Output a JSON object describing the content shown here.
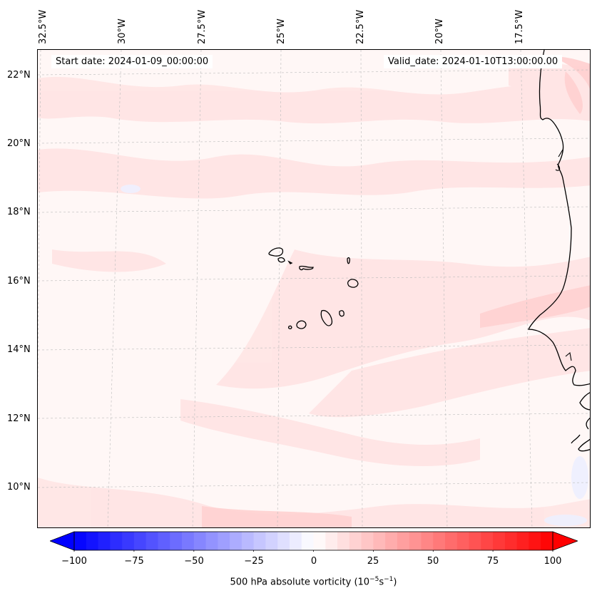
{
  "map": {
    "field": "500 hPa absolute vorticity",
    "units_prefix": "(10",
    "units_exp1": "−5",
    "units_mid": "s",
    "units_exp2": "−1",
    "units_suffix": ")",
    "start_date": "Start date: 2024-01-09_00:00:00",
    "valid_date": "Valid_date: 2024-01-10T13:00:00.00",
    "longitude_labels": [
      "32.5°W",
      "30°W",
      "27.5°W",
      "25°W",
      "22.5°W",
      "20°W",
      "17.5°W"
    ],
    "latitude_labels": [
      "22°N",
      "20°N",
      "18°N",
      "16°N",
      "14°N",
      "12°N",
      "10°N"
    ],
    "features": [
      "Cabo Verde islands",
      "West African coastline"
    ]
  },
  "colorbar": {
    "ticks": [
      "−100",
      "−75",
      "−50",
      "−25",
      "0",
      "25",
      "50",
      "75",
      "100"
    ],
    "min": -100,
    "max": 100,
    "neg_color": "#0000ff",
    "pos_color": "#ff0000",
    "extend": "both"
  }
}
